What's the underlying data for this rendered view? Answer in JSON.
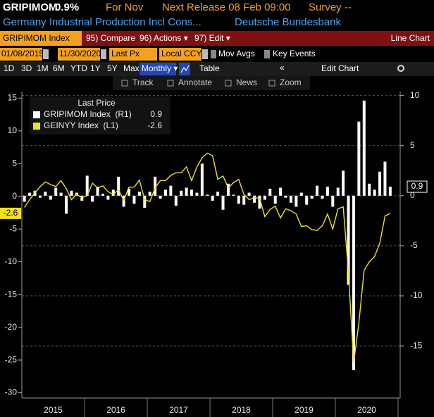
{
  "header": {
    "ticker": "GRIPIMOM",
    "last": "0.9%",
    "period": "For Nov",
    "release": "Next Release 08 Feb 09:00",
    "survey": "Survey --",
    "name": "Germany Industrial Production Incl Cons...",
    "source": "Deutsche Bundesbank"
  },
  "toolbar": {
    "security": "GRIPIMOM Index",
    "compare": "95) Compare",
    "actions": "96) Actions ▾",
    "edit": "97) Edit ▾",
    "chart_type": "Line Chart"
  },
  "controls": {
    "start": "01/08/2015",
    "end": "11/30/2020",
    "field": "Last Px",
    "currency": "Local CCY",
    "mov_avgs": "Mov Avgs",
    "key_events": "Key Events"
  },
  "periods": [
    "1D",
    "3D",
    "1M",
    "6M",
    "YTD",
    "1Y",
    "5Y",
    "Max"
  ],
  "frequency": "Monthly ▾",
  "table": "Table",
  "back": "«",
  "edit_chart": "Edit Chart",
  "tools": [
    "Track",
    "Annotate",
    "News",
    "Zoom"
  ],
  "chart_data": {
    "type": "combo",
    "legend_title": "Last Price",
    "xlabels": [
      "2015",
      "2016",
      "2017",
      "2018",
      "2019",
      "2020"
    ],
    "ylim": [
      -30.8,
      16
    ],
    "yticks": [
      15,
      10,
      5,
      0,
      -5,
      -10,
      -15,
      -20,
      -25,
      -30
    ],
    "y2lim": [
      -20.2,
      10.4
    ],
    "y2ticks": [
      10,
      5,
      0,
      -5,
      -10,
      -15
    ],
    "grid": true,
    "series": [
      {
        "name": "GRIPIMOM Index  (R1)",
        "type": "bar",
        "axis": "y2",
        "color": "#ffffff",
        "values": [
          -0.6,
          0.3,
          0.5,
          -0.2,
          0.4,
          -0.4,
          0.8,
          0.3,
          -1.8,
          0.5,
          0.3,
          -0.5,
          2.0,
          -0.6,
          0.9,
          0.2,
          -0.4,
          0.6,
          1.9,
          -1.1,
          0.7,
          -0.8,
          0.4,
          -1.2,
          0.4,
          1.9,
          -0.3,
          0.6,
          1.0,
          -1.0,
          0.5,
          0.8,
          0.6,
          0.3,
          3.2,
          0.1,
          -0.5,
          0.4,
          -1.4,
          1.2,
          0.1,
          -0.8,
          -0.9,
          0.3,
          -0.7,
          -1.3,
          -0.4,
          0.7,
          -0.8,
          0.8,
          -0.2,
          -0.7,
          -1.1,
          0.3,
          -0.9,
          -0.3,
          1.0,
          -0.3,
          0.9,
          -1.1,
          0.8,
          2.5,
          -8.9,
          -17.4,
          7.4,
          9.5,
          1.2,
          0.6,
          2.4,
          3.4,
          0.9
        ]
      },
      {
        "name": "GEINYY Index  (L1)",
        "type": "line",
        "axis": "y",
        "color": "#f0e21c",
        "values": [
          -1.7,
          -0.5,
          0.5,
          1.5,
          2.2,
          1.8,
          1.5,
          2.4,
          1.2,
          -0.5,
          0.3,
          -0.2,
          0.1,
          2.0,
          1.3,
          1.6,
          0.7,
          0.3,
          1.0,
          -0.6,
          1.4,
          1.4,
          2.5,
          -0.5,
          -0.8,
          1.3,
          2.4,
          2.4,
          3.2,
          3.6,
          3.6,
          4.5,
          2.4,
          4.5,
          5.9,
          6.6,
          6.2,
          2.6,
          3.1,
          1.3,
          2.1,
          2.6,
          0.3,
          -0.5,
          -0.2,
          -0.3,
          -3.1,
          -2.0,
          -1.5,
          -3.3,
          -1.9,
          -2.2,
          -2.7,
          -4.6,
          -4.5,
          -5.1,
          -5.2,
          -4.5,
          -2.7,
          -5.0,
          -1.9,
          -1.6,
          -11.5,
          -25.4,
          -19.3,
          -11.3,
          -10.0,
          -9.2,
          -7.2,
          -3.0,
          -2.6
        ]
      }
    ]
  }
}
